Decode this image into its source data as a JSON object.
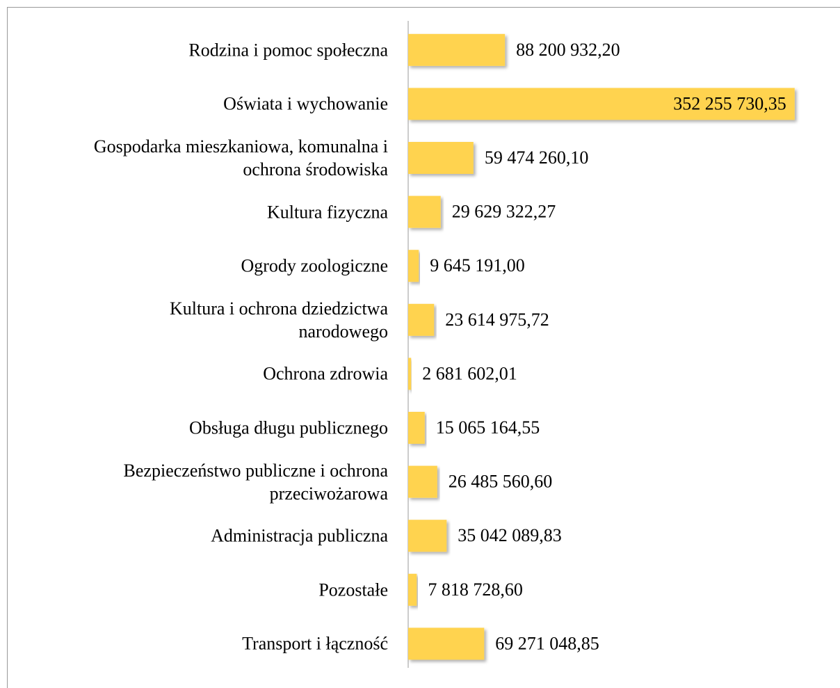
{
  "chart_data": {
    "type": "bar",
    "orientation": "horizontal",
    "categories": [
      "Rodzina i pomoc społeczna",
      "Oświata i wychowanie",
      "Gospodarka mieszkaniowa, komunalna i\nochrona środowiska",
      "Kultura fizyczna",
      "Ogrody zoologiczne",
      "Kultura i ochrona dziedzictwa\nnarodowego",
      "Ochrona zdrowia",
      "Obsługa długu publicznego",
      "Bezpieczeństwo publiczne i ochrona\nprzeciwożarowa",
      "Administracja publiczna",
      "Pozostałe",
      "Transport i łączność"
    ],
    "values": [
      88200932.2,
      352255730.35,
      59474260.1,
      29629322.27,
      9645191.0,
      23614975.72,
      2681602.01,
      15065164.55,
      26485560.6,
      35042089.83,
      7818728.6,
      69271048.85
    ],
    "value_labels": [
      "88 200 932,20",
      "352 255 730,35",
      "59 474 260,10",
      "29 629 322,27",
      "9 645 191,00",
      "23 614 975,72",
      "2 681 602,01",
      "15 065 164,55",
      "26 485 560,60",
      "35 042 089,83",
      "7 818 728,60",
      "69 271 048,85"
    ],
    "color": "#ffd34f",
    "xlim": [
      0,
      360000000
    ]
  }
}
